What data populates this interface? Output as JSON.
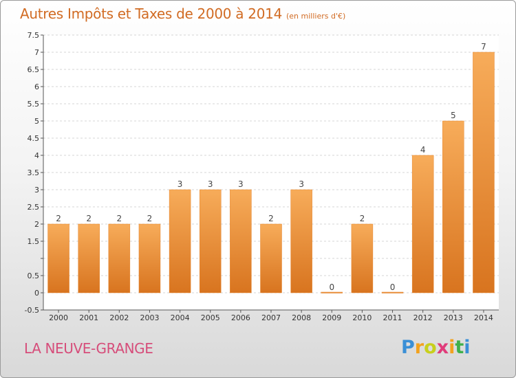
{
  "chart_data": {
    "type": "bar",
    "title": "Autres Impôts et Taxes de 2000 à 2014",
    "unit_label": "(en milliers d'€)",
    "categories": [
      "2000",
      "2001",
      "2002",
      "2003",
      "2004",
      "2005",
      "2006",
      "2007",
      "2008",
      "2009",
      "2010",
      "2011",
      "2012",
      "2013",
      "2014"
    ],
    "values": [
      2,
      2,
      2,
      2,
      3,
      3,
      3,
      2,
      3,
      0,
      2,
      0,
      4,
      5,
      7
    ],
    "value_labels": [
      "2",
      "2",
      "2",
      "2",
      "3",
      "3",
      "3",
      "2",
      "3",
      "0",
      "2",
      "0",
      "4",
      "5",
      "7"
    ],
    "ylim": [
      -0.5,
      7.5
    ],
    "yticks": [
      -0.5,
      0,
      0.5,
      1,
      1.5,
      2,
      2.5,
      3,
      3.5,
      4,
      4.5,
      5,
      5.5,
      6,
      6.5,
      7,
      7.5
    ],
    "ytick_labels": [
      "-0.5",
      "0",
      "0.5",
      "",
      "1.5",
      "2",
      "2.5",
      "3",
      "3.5",
      "4",
      "4.5",
      "5",
      "5.5",
      "6",
      "6.5",
      "7",
      "7.5"
    ],
    "grid": true,
    "legend": "none",
    "bar_color": "#f0923a",
    "bar_dark": "#d8741f",
    "bar_light": "#f7ac5a"
  },
  "footer": {
    "commune": "LA NEUVE-GRANGE",
    "logo_letters": [
      "P",
      "r",
      "o",
      "x",
      "i",
      "t",
      "i"
    ],
    "logo_colors": [
      "#3a8fd6",
      "#f2a21e",
      "#c8cf1c",
      "#e03c7a",
      "#f2a21e",
      "#3fb04a",
      "#3a8fd6"
    ]
  }
}
